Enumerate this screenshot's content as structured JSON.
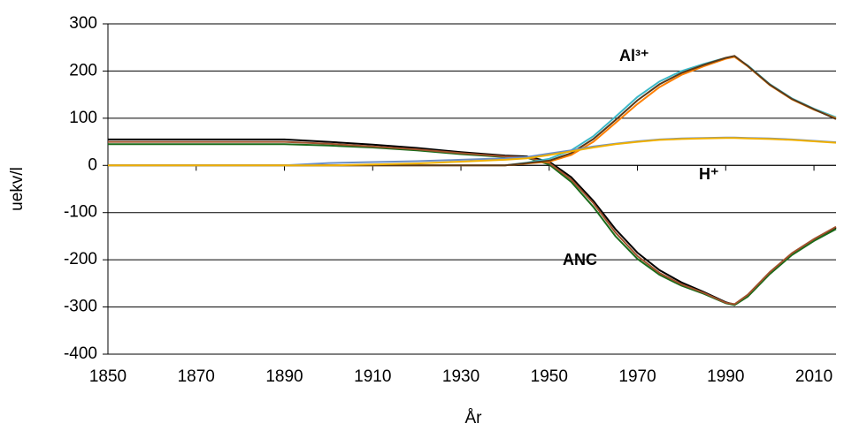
{
  "chart_data": {
    "type": "line",
    "x_label": "År",
    "y_label": "uekv/l",
    "annotations": [
      "Al³⁺",
      "H⁺",
      "ANC"
    ],
    "x": [
      1850,
      1870,
      1890,
      1900,
      1910,
      1920,
      1930,
      1940,
      1945,
      1950,
      1955,
      1960,
      1965,
      1970,
      1975,
      1980,
      1985,
      1990,
      1992,
      1995,
      2000,
      2005,
      2010,
      2015
    ],
    "series": [
      {
        "color": "#000000",
        "values": [
          55,
          55,
          55,
          50,
          44,
          37,
          28,
          21,
          19,
          8,
          -25,
          -75,
          -135,
          -185,
          -222,
          -248,
          -268,
          -290,
          -295,
          -275,
          -228,
          -188,
          -158,
          -132
        ]
      },
      {
        "color": "#1a6b1a",
        "values": [
          45,
          45,
          45,
          42,
          38,
          32,
          24,
          18,
          16,
          2,
          -35,
          -88,
          -150,
          -198,
          -232,
          -255,
          -272,
          -292,
          -296,
          -278,
          -230,
          -190,
          -160,
          -135
        ]
      },
      {
        "color": "#a0522d",
        "values": [
          50,
          50,
          50,
          46,
          40,
          34,
          26,
          19,
          17,
          5,
          -30,
          -80,
          -142,
          -192,
          -228,
          -252,
          -270,
          -291,
          -294,
          -274,
          -226,
          -186,
          -156,
          -130
        ]
      },
      {
        "color": "#3cb8c8",
        "values": [
          0,
          0,
          0,
          0,
          0,
          0,
          0,
          0,
          6,
          14,
          32,
          62,
          103,
          145,
          178,
          200,
          215,
          228,
          230,
          212,
          172,
          142,
          120,
          102
        ]
      },
      {
        "color": "#ff7f00",
        "values": [
          0,
          0,
          0,
          0,
          0,
          0,
          0,
          0,
          4,
          8,
          22,
          50,
          90,
          130,
          166,
          192,
          210,
          226,
          230,
          210,
          170,
          140,
          118,
          100
        ]
      },
      {
        "color": "#5a3a1a",
        "values": [
          0,
          0,
          0,
          0,
          0,
          0,
          0,
          0,
          5,
          10,
          26,
          56,
          96,
          138,
          172,
          196,
          213,
          228,
          232,
          211,
          171,
          141,
          119,
          98
        ]
      },
      {
        "color": "#6b8ec6",
        "values": [
          0,
          0,
          0,
          5,
          7,
          9,
          12,
          15,
          18,
          25,
          32,
          40,
          46,
          51,
          55,
          57,
          58,
          59,
          59,
          58,
          57,
          55,
          52,
          49
        ]
      },
      {
        "color": "#f0b000",
        "values": [
          0,
          0,
          0,
          0,
          2,
          4,
          8,
          12,
          15,
          22,
          30,
          38,
          45,
          50,
          54,
          56,
          57,
          58,
          58,
          57,
          56,
          54,
          51,
          48
        ]
      }
    ],
    "xlim": [
      1850,
      2015
    ],
    "ylim": [
      -400,
      300
    ],
    "xticks": [
      1850,
      1870,
      1890,
      1910,
      1930,
      1950,
      1970,
      1990,
      2010
    ],
    "yticks": [
      -400,
      -300,
      -200,
      -100,
      0,
      100,
      200,
      300
    ],
    "grid": true
  }
}
